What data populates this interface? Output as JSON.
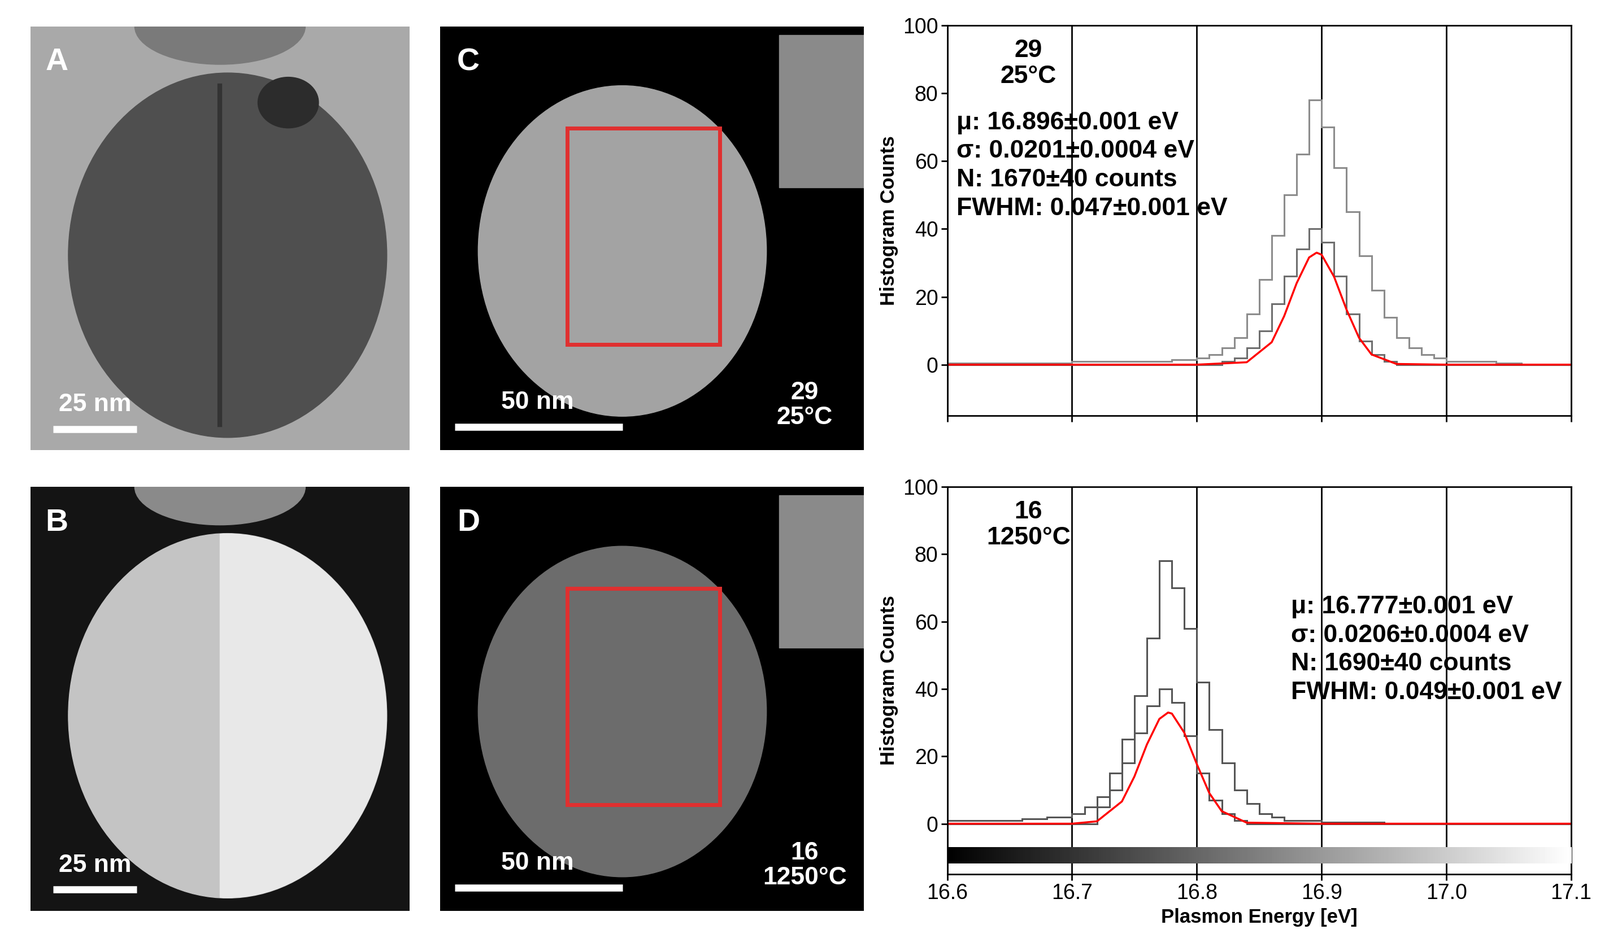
{
  "panels": [
    {
      "label": "A",
      "scale_bar": "25 nm"
    },
    {
      "label": "B",
      "scale_bar": "25 nm"
    },
    {
      "label": "C",
      "scale_bar": "50 nm",
      "sample": "29",
      "temperature": "25°C"
    },
    {
      "label": "D",
      "scale_bar": "50 nm",
      "sample": "16",
      "temperature": "1250°C"
    }
  ],
  "chart_data": [
    {
      "type": "histogram",
      "sample": "29",
      "temperature": "25°C",
      "stats": [
        "μ: 16.896±0.001 eV",
        "σ: 0.0201±0.0004 eV",
        "N: 1670±40 counts",
        "FWHM: 0.047±0.001 eV"
      ],
      "y_label": "Histogram Counts",
      "bins": [
        16.6,
        16.61,
        16.62,
        16.63,
        16.64,
        16.65,
        16.66,
        16.67,
        16.68,
        16.69,
        16.7,
        16.71,
        16.72,
        16.73,
        16.74,
        16.75,
        16.76,
        16.77,
        16.78,
        16.79,
        16.8,
        16.81,
        16.82,
        16.83,
        16.84,
        16.85,
        16.86,
        16.87,
        16.88,
        16.89,
        16.9,
        16.91,
        16.92,
        16.93,
        16.94,
        16.95,
        16.96,
        16.97,
        16.98,
        16.99,
        17.0,
        17.01,
        17.02,
        17.03,
        17.04,
        17.05,
        17.06,
        17.07,
        17.08,
        17.09,
        17.1
      ],
      "series": [
        {
          "type": "histogram",
          "color": "#8c8c8c",
          "values": [
            0.5,
            0.5,
            0.5,
            0.5,
            0.5,
            0.5,
            0.5,
            0.5,
            0.5,
            0.5,
            1,
            1,
            1,
            1,
            1,
            1,
            1,
            1,
            1.5,
            1.5,
            2,
            3,
            5,
            8,
            15,
            25,
            38,
            50,
            62,
            78,
            70,
            58,
            45,
            32,
            22,
            14,
            8,
            5,
            3,
            2,
            1,
            1,
            1,
            1,
            0.5,
            0.5,
            0,
            0,
            0,
            0
          ]
        },
        {
          "type": "histogram",
          "color": "#6e6e6e",
          "values": [
            0,
            0,
            0,
            0,
            0,
            0,
            0,
            0,
            0,
            0,
            0,
            0,
            0,
            0,
            0,
            0,
            0,
            0,
            0,
            0,
            0,
            0,
            1,
            2,
            5,
            10,
            18,
            26,
            34,
            40,
            36,
            26,
            15,
            7,
            3,
            1,
            0,
            0,
            0,
            0,
            0,
            0,
            0,
            0,
            0,
            0,
            0,
            0,
            0,
            0
          ]
        },
        {
          "type": "line",
          "color": "#ff0000",
          "x": [
            16.6,
            16.8,
            16.84,
            16.86,
            16.87,
            16.88,
            16.89,
            16.896,
            16.9,
            16.91,
            16.92,
            16.93,
            16.94,
            16.96,
            17.0,
            17.1
          ],
          "values": [
            0,
            0,
            0.7,
            6.6,
            14.3,
            24.0,
            31.6,
            33,
            32.4,
            25.9,
            16.2,
            7.9,
            3.0,
            0.2,
            0,
            0
          ]
        }
      ],
      "xlim": [
        16.6,
        17.1
      ],
      "ylim": [
        -15,
        100
      ],
      "xticks": [
        16.6,
        16.7,
        16.8,
        16.9,
        17.0,
        17.1
      ],
      "yticks": [
        0,
        20,
        40,
        60,
        80,
        100
      ],
      "grid": "x",
      "tick_labels": "y"
    },
    {
      "type": "histogram",
      "sample": "16",
      "temperature": "1250°C",
      "stats": [
        "μ: 16.777±0.001 eV",
        "σ: 0.0206±0.0004 eV",
        "N: 1690±40 counts",
        "FWHM: 0.049±0.001 eV"
      ],
      "x_label": "Plasmon Energy [eV]",
      "y_label": "Histogram Counts",
      "bins": [
        16.6,
        16.61,
        16.62,
        16.63,
        16.64,
        16.65,
        16.66,
        16.67,
        16.68,
        16.69,
        16.7,
        16.71,
        16.72,
        16.73,
        16.74,
        16.75,
        16.76,
        16.77,
        16.78,
        16.79,
        16.8,
        16.81,
        16.82,
        16.83,
        16.84,
        16.85,
        16.86,
        16.87,
        16.88,
        16.89,
        16.9,
        16.91,
        16.92,
        16.93,
        16.94,
        16.95,
        16.96,
        16.97,
        16.98,
        16.99,
        17.0,
        17.01,
        17.02,
        17.03,
        17.04,
        17.05,
        17.06,
        17.07,
        17.08,
        17.09,
        17.1
      ],
      "series": [
        {
          "type": "histogram",
          "color": "#555555",
          "values": [
            1,
            1,
            1,
            1,
            1,
            1,
            1.5,
            1.5,
            2,
            2,
            3,
            5,
            8,
            15,
            25,
            38,
            55,
            78,
            70,
            58,
            42,
            28,
            18,
            10,
            6,
            3,
            2,
            1,
            1,
            1,
            0.5,
            0.5,
            0.5,
            0.5,
            0.5,
            0,
            0,
            0,
            0,
            0,
            0,
            0,
            0,
            0,
            0,
            0,
            0,
            0,
            0,
            0
          ]
        },
        {
          "type": "histogram",
          "color": "#555555",
          "values": [
            0,
            0,
            0,
            0,
            0,
            0,
            0,
            0,
            0,
            0,
            0,
            0,
            5,
            10,
            18,
            27,
            35,
            40,
            36,
            26,
            15,
            7,
            3,
            1,
            0,
            0,
            0,
            0,
            0,
            0,
            0,
            0,
            0,
            0,
            0,
            0,
            0,
            0,
            0,
            0,
            0,
            0,
            0,
            0,
            0,
            0,
            0,
            0,
            0,
            0
          ]
        },
        {
          "type": "line",
          "color": "#ff0000",
          "x": [
            16.6,
            16.7,
            16.72,
            16.74,
            16.75,
            16.76,
            16.77,
            16.777,
            16.78,
            16.79,
            16.8,
            16.81,
            16.82,
            16.84,
            16.9,
            17.1
          ],
          "values": [
            0,
            0,
            0.7,
            6.6,
            14.0,
            23.5,
            31.1,
            33,
            32.7,
            27.0,
            17.7,
            9.1,
            3.7,
            0.3,
            0,
            0
          ]
        }
      ],
      "xlim": [
        16.6,
        17.1
      ],
      "ylim": [
        -15,
        100
      ],
      "xticks": [
        16.6,
        16.7,
        16.8,
        16.9,
        17.0,
        17.1
      ],
      "yticks": [
        0,
        20,
        40,
        60,
        80,
        100
      ],
      "grid": "x",
      "tick_labels": true
    }
  ]
}
